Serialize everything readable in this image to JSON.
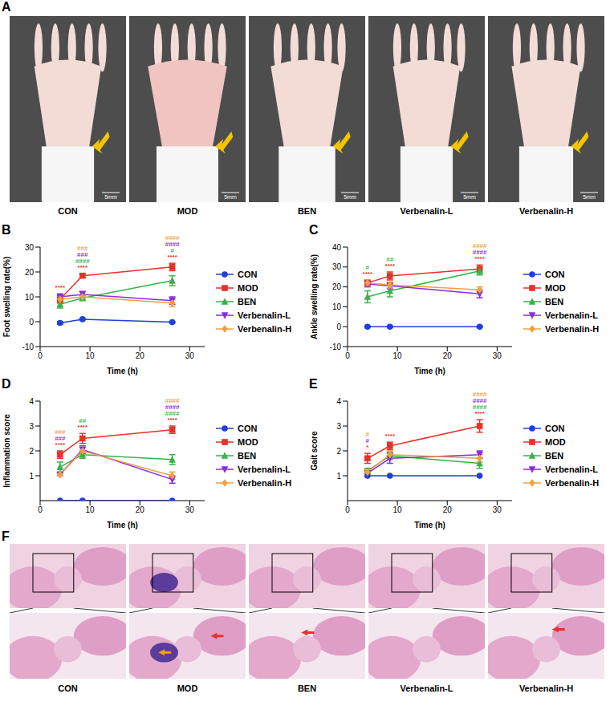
{
  "figures": [
    {
      "panel": "A",
      "labels": [
        "CON",
        "MOD",
        "BEN",
        "Verbenalin-L",
        "Verbenalin-H"
      ],
      "scale_bar": "5mm"
    },
    {
      "panel": "F",
      "labels": [
        "CON",
        "MOD",
        "BEN",
        "Verbenalin-L",
        "Verbenalin-H"
      ]
    }
  ],
  "chart_data": [
    {
      "panel": "B",
      "type": "line",
      "x": [
        4,
        8.5,
        26.5
      ],
      "xlabel": "Time (h)",
      "ylabel": "Foot swelling rate(%)",
      "xlim": [
        0,
        33
      ],
      "xticks": [
        0,
        10,
        20,
        30
      ],
      "ylim": [
        -10,
        30
      ],
      "yticks": [
        -10,
        0,
        10,
        20,
        30
      ],
      "grid": false,
      "legend": "right",
      "series": [
        {
          "name": "CON",
          "color": "#1f3fd6",
          "marker": "circle",
          "values": [
            -0.5,
            1,
            -0.2
          ],
          "errors": [
            0.5,
            0.3,
            0.3
          ]
        },
        {
          "name": "MOD",
          "color": "#e8312a",
          "marker": "square",
          "values": [
            9,
            18.5,
            22
          ],
          "errors": [
            1.5,
            0.8,
            1.5
          ]
        },
        {
          "name": "BEN",
          "color": "#35b34a",
          "marker": "triangle",
          "values": [
            7,
            9.5,
            16.5
          ],
          "errors": [
            1.5,
            1,
            2
          ]
        },
        {
          "name": "Verbenalin-L",
          "color": "#8a2be2",
          "marker": "triangle-down",
          "values": [
            10,
            11,
            8.5
          ],
          "errors": [
            1.2,
            1.2,
            1.5
          ]
        },
        {
          "name": "Verbenalin-H",
          "color": "#f0a040",
          "marker": "diamond",
          "values": [
            9,
            10,
            7.5
          ],
          "errors": [
            1,
            1,
            1.5
          ]
        }
      ],
      "annotations": [
        {
          "x": 4,
          "texts": [
            "****"
          ],
          "colors": [
            "#e8312a"
          ]
        },
        {
          "x": 8.5,
          "texts": [
            "###",
            "###",
            "####",
            "****"
          ],
          "colors": [
            "#f0a040",
            "#8a2be2",
            "#35b34a",
            "#e8312a"
          ]
        },
        {
          "x": 26.5,
          "texts": [
            "####",
            "####",
            "#",
            "****"
          ],
          "colors": [
            "#f0a040",
            "#8a2be2",
            "#35b34a",
            "#e8312a"
          ]
        }
      ]
    },
    {
      "panel": "C",
      "type": "line",
      "x": [
        4,
        8.5,
        26.5
      ],
      "xlabel": "Time (h)",
      "ylabel": "Ankle swelling rate(%)",
      "xlim": [
        0,
        33
      ],
      "xticks": [
        0,
        10,
        20,
        30
      ],
      "ylim": [
        -10,
        40
      ],
      "yticks": [
        -10,
        0,
        10,
        20,
        30,
        40
      ],
      "grid": false,
      "legend": "right",
      "series": [
        {
          "name": "CON",
          "color": "#1f3fd6",
          "marker": "circle",
          "values": [
            0,
            0,
            0
          ],
          "errors": [
            0.3,
            0.3,
            0.3
          ]
        },
        {
          "name": "MOD",
          "color": "#e8312a",
          "marker": "square",
          "values": [
            22,
            25.5,
            29
          ],
          "errors": [
            1.5,
            2,
            2
          ]
        },
        {
          "name": "BEN",
          "color": "#35b34a",
          "marker": "triangle",
          "values": [
            15,
            18,
            28
          ],
          "errors": [
            3,
            3,
            2
          ]
        },
        {
          "name": "Verbenalin-L",
          "color": "#8a2be2",
          "marker": "triangle-down",
          "values": [
            21.5,
            20.5,
            16.5
          ],
          "errors": [
            1.5,
            1.5,
            2
          ]
        },
        {
          "name": "Verbenalin-H",
          "color": "#f0a040",
          "marker": "diamond",
          "values": [
            22,
            21,
            18.5
          ],
          "errors": [
            1.5,
            1.5,
            1.5
          ]
        }
      ],
      "annotations": [
        {
          "x": 4,
          "texts": [
            "#",
            "****"
          ],
          "colors": [
            "#35b34a",
            "#e8312a"
          ]
        },
        {
          "x": 8.5,
          "texts": [
            "##",
            "****"
          ],
          "colors": [
            "#35b34a",
            "#e8312a"
          ]
        },
        {
          "x": 26.5,
          "texts": [
            "####",
            "####",
            "****"
          ],
          "colors": [
            "#f0a040",
            "#8a2be2",
            "#e8312a"
          ]
        }
      ]
    },
    {
      "panel": "D",
      "type": "line",
      "x": [
        4,
        8.5,
        26.5
      ],
      "xlabel": "Time (h)",
      "ylabel": "Inflammation score",
      "xlim": [
        0,
        33
      ],
      "xticks": [
        0,
        10,
        20,
        30
      ],
      "ylim": [
        0,
        4
      ],
      "yticks": [
        1,
        2,
        3,
        4
      ],
      "grid": false,
      "legend": "right",
      "series": [
        {
          "name": "CON",
          "color": "#1f3fd6",
          "marker": "circle",
          "values": [
            0,
            0,
            0
          ],
          "errors": [
            0,
            0,
            0
          ]
        },
        {
          "name": "MOD",
          "color": "#e8312a",
          "marker": "square",
          "values": [
            1.85,
            2.5,
            2.85
          ],
          "errors": [
            0.15,
            0.2,
            0.15
          ]
        },
        {
          "name": "BEN",
          "color": "#35b34a",
          "marker": "triangle",
          "values": [
            1.35,
            1.85,
            1.65
          ],
          "errors": [
            0.2,
            0.15,
            0.2
          ]
        },
        {
          "name": "Verbenalin-L",
          "color": "#8a2be2",
          "marker": "triangle-down",
          "values": [
            1.05,
            2.05,
            0.85
          ],
          "errors": [
            0.05,
            0.15,
            0.15
          ]
        },
        {
          "name": "Verbenalin-H",
          "color": "#f0a040",
          "marker": "diamond",
          "values": [
            1.05,
            2,
            1
          ],
          "errors": [
            0.05,
            0.15,
            0.15
          ]
        }
      ],
      "annotations": [
        {
          "x": 4,
          "texts": [
            "###",
            "###",
            "****"
          ],
          "colors": [
            "#f0a040",
            "#8a2be2",
            "#e8312a"
          ]
        },
        {
          "x": 8.5,
          "texts": [
            "##",
            "****"
          ],
          "colors": [
            "#35b34a",
            "#e8312a"
          ]
        },
        {
          "x": 26.5,
          "texts": [
            "####",
            "####",
            "####",
            "****"
          ],
          "colors": [
            "#f0a040",
            "#8a2be2",
            "#35b34a",
            "#e8312a"
          ]
        }
      ]
    },
    {
      "panel": "E",
      "type": "line",
      "x": [
        4,
        8.5,
        26.5
      ],
      "xlabel": "Time (h)",
      "ylabel": "Gait score",
      "xlim": [
        0,
        33
      ],
      "xticks": [
        0,
        10,
        20,
        30
      ],
      "ylim": [
        0,
        4
      ],
      "yticks": [
        1,
        2,
        3,
        4
      ],
      "grid": false,
      "legend": "right",
      "series": [
        {
          "name": "CON",
          "color": "#1f3fd6",
          "marker": "circle",
          "values": [
            1,
            1,
            1
          ],
          "errors": [
            0,
            0,
            0
          ]
        },
        {
          "name": "MOD",
          "color": "#e8312a",
          "marker": "square",
          "values": [
            1.7,
            2.2,
            3
          ],
          "errors": [
            0.2,
            0.15,
            0.25
          ]
        },
        {
          "name": "BEN",
          "color": "#35b34a",
          "marker": "triangle",
          "values": [
            1.2,
            1.8,
            1.5
          ],
          "errors": [
            0.1,
            0.15,
            0.2
          ]
        },
        {
          "name": "Verbenalin-L",
          "color": "#8a2be2",
          "marker": "triangle-down",
          "values": [
            1.1,
            1.7,
            1.85
          ],
          "errors": [
            0.1,
            0.2,
            0.15
          ]
        },
        {
          "name": "Verbenalin-H",
          "color": "#f0a040",
          "marker": "diamond",
          "values": [
            1.15,
            1.85,
            1.7
          ],
          "errors": [
            0.1,
            0.15,
            0.15
          ]
        }
      ],
      "annotations": [
        {
          "x": 4,
          "texts": [
            "#",
            "#",
            "*"
          ],
          "colors": [
            "#f0a040",
            "#8a2be2",
            "#e8312a"
          ]
        },
        {
          "x": 8.5,
          "texts": [
            "****"
          ],
          "colors": [
            "#e8312a"
          ]
        },
        {
          "x": 26.5,
          "texts": [
            "####",
            "####",
            "####",
            "****"
          ],
          "colors": [
            "#f0a040",
            "#8a2be2",
            "#35b34a",
            "#e8312a"
          ]
        }
      ]
    }
  ]
}
